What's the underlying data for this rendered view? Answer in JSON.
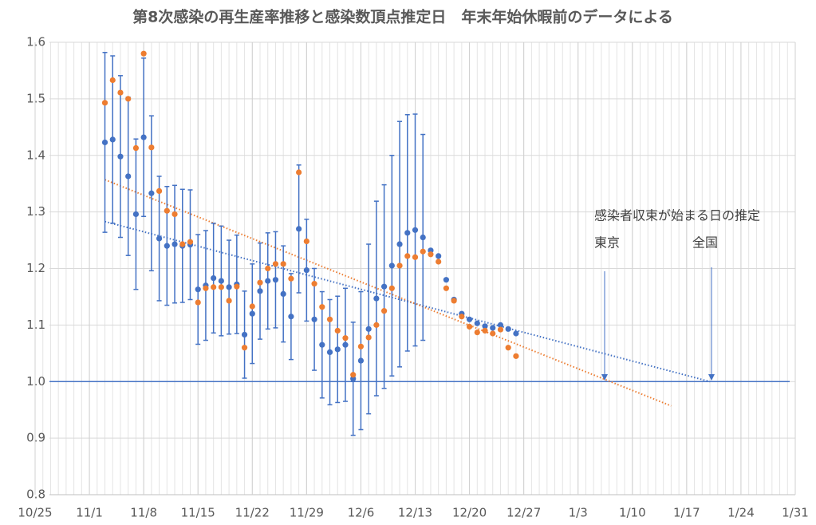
{
  "chart_data": {
    "type": "scatter",
    "title": "第8次感染の再生産率推移と感染数頂点推定日　年末年始休暇前のデータによる",
    "x": [
      "11/3",
      "11/4",
      "11/5",
      "11/6",
      "11/7",
      "11/8",
      "11/9",
      "11/10",
      "11/11",
      "11/12",
      "11/13",
      "11/14",
      "11/15",
      "11/16",
      "11/17",
      "11/18",
      "11/19",
      "11/20",
      "11/21",
      "11/22",
      "11/23",
      "11/24",
      "11/25",
      "11/26",
      "11/27",
      "11/28",
      "11/29",
      "11/30",
      "12/1",
      "12/2",
      "12/3",
      "12/4",
      "12/5",
      "12/6",
      "12/7",
      "12/8",
      "12/9",
      "12/10",
      "12/11",
      "12/12",
      "12/13",
      "12/14",
      "12/15",
      "12/16",
      "12/17",
      "12/18",
      "12/19",
      "12/20",
      "12/21",
      "12/22",
      "12/23",
      "12/24",
      "12/25",
      "12/26"
    ],
    "series": [
      {
        "color": "#4472c4",
        "values": [
          1.423,
          1.428,
          1.398,
          1.363,
          1.296,
          1.432,
          1.333,
          1.253,
          1.24,
          1.243,
          1.24,
          1.242,
          1.163,
          1.17,
          1.183,
          1.178,
          1.167,
          1.172,
          1.083,
          1.12,
          1.16,
          1.178,
          1.18,
          1.155,
          1.115,
          1.27,
          1.197,
          1.11,
          1.065,
          1.052,
          1.057,
          1.065,
          1.005,
          1.037,
          1.093,
          1.147,
          1.168,
          1.205,
          1.243,
          1.263,
          1.268,
          1.255,
          1.232,
          1.222,
          1.18,
          1.145,
          1.12,
          1.11,
          1.103,
          1.098,
          1.095,
          1.1,
          1.093,
          1.085
        ],
        "errors": [
          0.159,
          0.148,
          0.143,
          0.14,
          0.133,
          0.14,
          0.137,
          0.11,
          0.105,
          0.104,
          0.1,
          0.097,
          0.097,
          0.097,
          0.097,
          0.097,
          0.083,
          0.087,
          0.077,
          0.088,
          0.085,
          0.085,
          0.085,
          0.085,
          0.076,
          0.113,
          0.09,
          0.09,
          0.094,
          0.093,
          0.094,
          0.1,
          0.1,
          0.122,
          0.15,
          0.172,
          0.18,
          0.195,
          0.217,
          0.209,
          0.205,
          0.182,
          null,
          null,
          null,
          null,
          null,
          null,
          null,
          null,
          null,
          null,
          null,
          null
        ]
      },
      {
        "color": "#ed7d31",
        "values": [
          1.493,
          1.533,
          1.511,
          1.5,
          1.413,
          1.58,
          1.414,
          1.337,
          1.302,
          1.296,
          1.243,
          1.247,
          1.14,
          1.165,
          1.167,
          1.167,
          1.143,
          1.168,
          1.06,
          1.133,
          1.175,
          1.2,
          1.208,
          1.208,
          1.182,
          1.37,
          1.248,
          1.173,
          1.132,
          1.11,
          1.09,
          1.077,
          1.012,
          1.062,
          1.078,
          1.1,
          1.125,
          1.165,
          1.205,
          1.222,
          1.22,
          1.23,
          1.225,
          1.212,
          1.165,
          1.143,
          1.115,
          1.097,
          1.087,
          1.09,
          1.085,
          1.092,
          1.06,
          1.045
        ]
      }
    ],
    "trendlines": [
      {
        "color": "#4472c4",
        "x": [
          "11/3",
          "1/20"
        ],
        "values": [
          1.283,
          1.0
        ]
      },
      {
        "color": "#ed7d31",
        "x": [
          "11/3",
          "1/15"
        ],
        "values": [
          1.357,
          0.957
        ]
      }
    ],
    "reference_line": {
      "value": 1,
      "color": "#4472c4"
    },
    "xlim": [
      "10/25",
      "1/31"
    ],
    "xticks": [
      "10/25",
      "11/1",
      "11/8",
      "11/15",
      "11/22",
      "11/29",
      "12/6",
      "12/13",
      "12/20",
      "12/27",
      "1/3",
      "1/10",
      "1/17",
      "1/24",
      "1/31"
    ],
    "ylim": [
      0.8,
      1.6
    ],
    "yticks": [
      0.8,
      0.9,
      {
        "value": 1,
        "label": "1.0"
      },
      1.1,
      1.2,
      1.3,
      1.4,
      1.5,
      1.6
    ],
    "grid": true,
    "annotations": [
      "感染者収束が始まる日の推定",
      "東京",
      "全国"
    ]
  }
}
